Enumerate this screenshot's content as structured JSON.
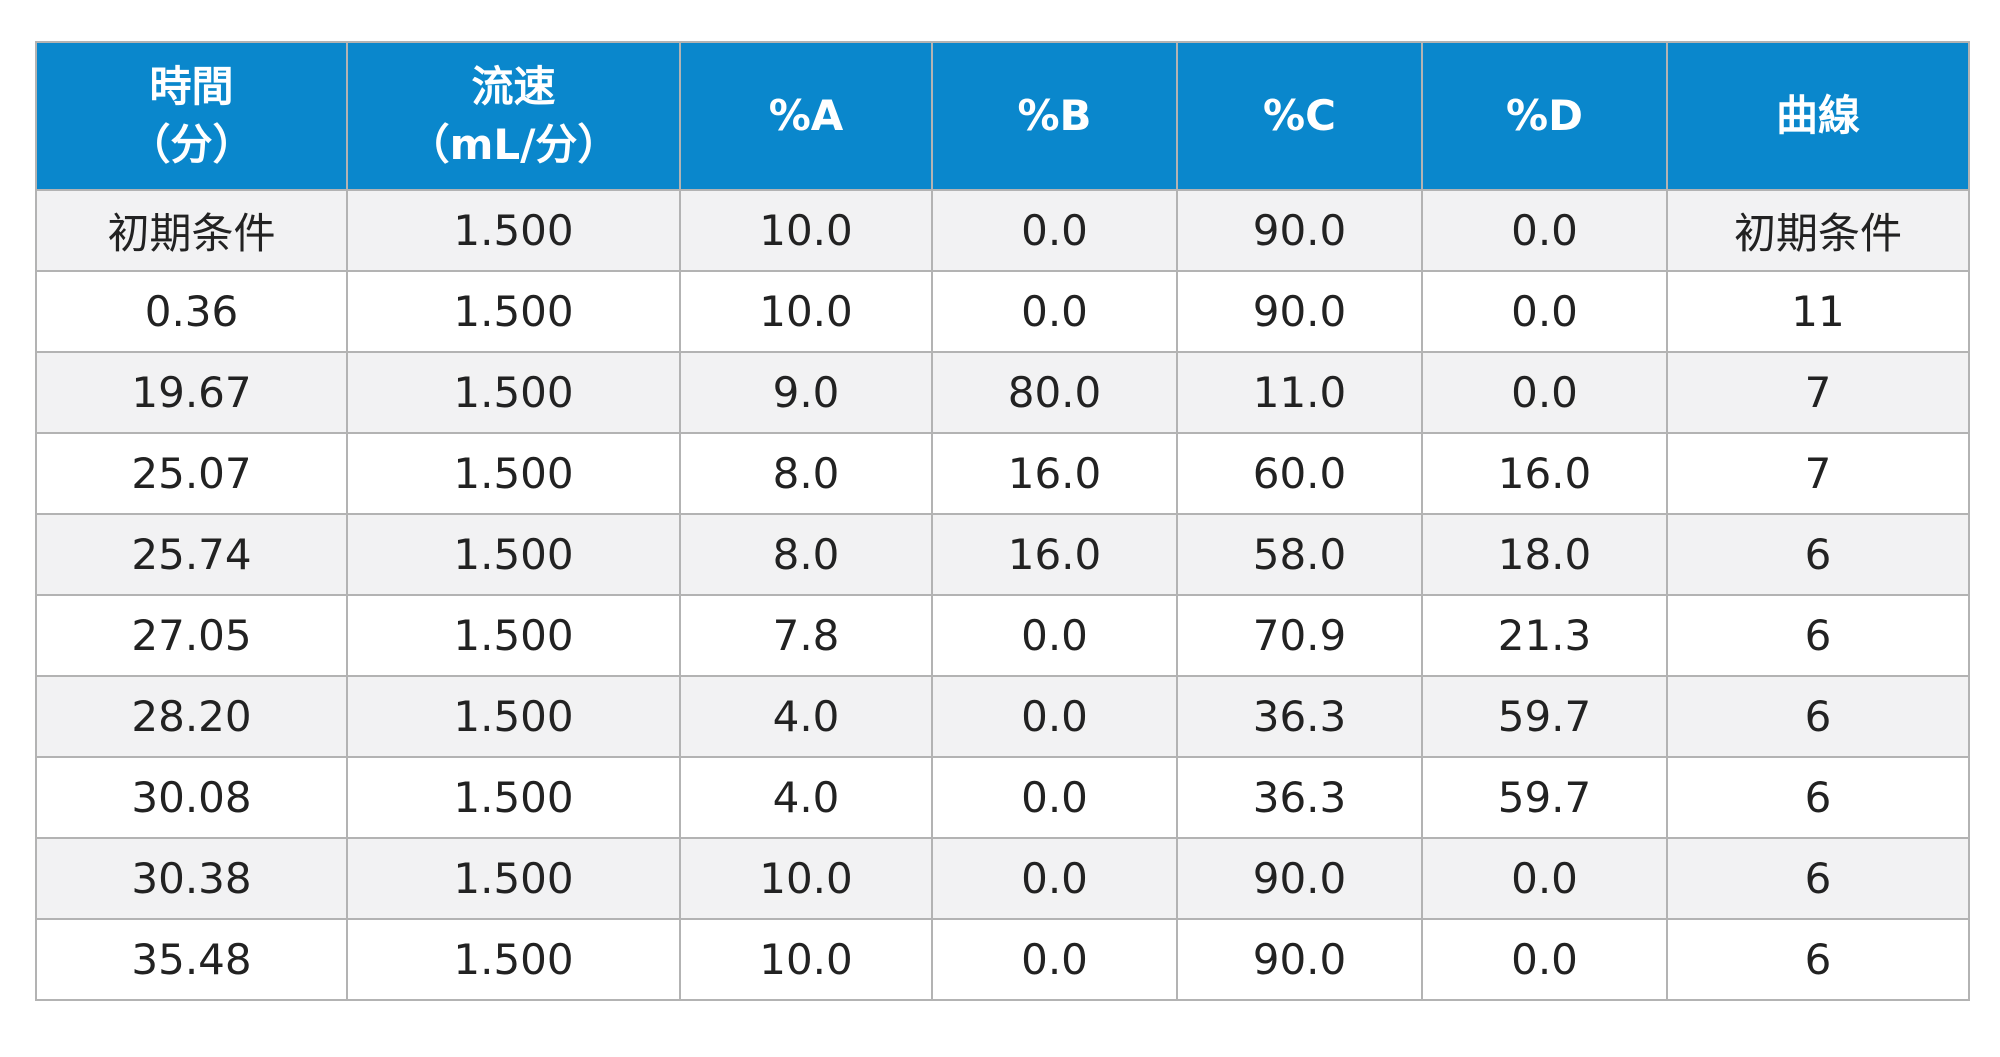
{
  "table": {
    "headers": [
      {
        "line1": "時間",
        "line2": "（分）"
      },
      {
        "line1": "流速",
        "line2": "（mL/分）"
      },
      {
        "line1": "%A",
        "line2": ""
      },
      {
        "line1": "%B",
        "line2": ""
      },
      {
        "line1": "%C",
        "line2": ""
      },
      {
        "line1": "%D",
        "line2": ""
      },
      {
        "line1": "曲線",
        "line2": ""
      }
    ],
    "rows": [
      [
        "初期条件",
        "1.500",
        "10.0",
        "0.0",
        "90.0",
        "0.0",
        "初期条件"
      ],
      [
        "0.36",
        "1.500",
        "10.0",
        "0.0",
        "90.0",
        "0.0",
        "11"
      ],
      [
        "19.67",
        "1.500",
        "9.0",
        "80.0",
        "11.0",
        "0.0",
        "7"
      ],
      [
        "25.07",
        "1.500",
        "8.0",
        "16.0",
        "60.0",
        "16.0",
        "7"
      ],
      [
        "25.74",
        "1.500",
        "8.0",
        "16.0",
        "58.0",
        "18.0",
        "6"
      ],
      [
        "27.05",
        "1.500",
        "7.8",
        "0.0",
        "70.9",
        "21.3",
        "6"
      ],
      [
        "28.20",
        "1.500",
        "4.0",
        "0.0",
        "36.3",
        "59.7",
        "6"
      ],
      [
        "30.08",
        "1.500",
        "4.0",
        "0.0",
        "36.3",
        "59.7",
        "6"
      ],
      [
        "30.38",
        "1.500",
        "10.0",
        "0.0",
        "90.0",
        "0.0",
        "6"
      ],
      [
        "35.48",
        "1.500",
        "10.0",
        "0.0",
        "90.0",
        "0.0",
        "6"
      ]
    ]
  },
  "colors": {
    "header_background": "#0a87cc",
    "header_text": "#ffffff",
    "row_shaded": "#f2f2f3",
    "row_plain": "#ffffff",
    "grid_line": "#b3b3b3"
  }
}
